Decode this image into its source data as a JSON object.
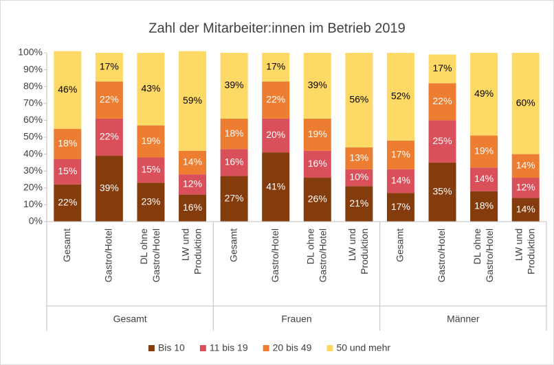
{
  "chart_data": {
    "type": "stacked_bar",
    "title": "Zahl der Mitarbeiter:innen im Betrieb 2019",
    "categories": [
      [
        "Gesamt"
      ],
      [
        "Gastro/Hotel"
      ],
      [
        "DL ohne",
        "Gastro/Hotel"
      ],
      [
        "LW und",
        "Produktion"
      ],
      [
        "Gesamt"
      ],
      [
        "Gastro/Hotel"
      ],
      [
        "DL ohne",
        "Gastro/Hotel"
      ],
      [
        "LW und",
        "Produktion"
      ],
      [
        "Gesamt"
      ],
      [
        "Gastro/Hotel"
      ],
      [
        "DL ohne",
        "Gastro/Hotel"
      ],
      [
        "LW und",
        "Produktion"
      ]
    ],
    "groups": [
      "Gesamt",
      "Frauen",
      "Männer"
    ],
    "series": [
      {
        "name": "Bis 10",
        "color": "#843c0c",
        "label_color": "#ffffff",
        "values": [
          22,
          39,
          23,
          16,
          27,
          41,
          26,
          21,
          17,
          35,
          18,
          14
        ],
        "value_labels": [
          "22%",
          "39%",
          "23%",
          "16%",
          "27%",
          "41%",
          "26%",
          "21%",
          "17%",
          "35%",
          "18%",
          "14%"
        ]
      },
      {
        "name": "11 bis 19",
        "color": "#d9505a",
        "label_color": "#ffffff",
        "values": [
          15,
          22,
          15,
          12,
          16,
          20,
          16,
          10,
          14,
          25,
          14,
          12
        ],
        "value_labels": [
          "15%",
          "22%",
          "15%",
          "12%",
          "16%",
          "20%",
          "16%",
          "10%",
          "14%",
          "25%",
          "14%",
          "12%"
        ]
      },
      {
        "name": "20 bis 49",
        "color": "#ed7d31",
        "label_color": "#ffffff",
        "values": [
          18,
          22,
          19,
          14,
          18,
          22,
          19,
          13,
          17,
          22,
          19,
          14
        ],
        "value_labels": [
          "18%",
          "22%",
          "19%",
          "14%",
          "18%",
          "22%",
          "19%",
          "13%",
          "17%",
          "22%",
          "19%",
          "14%"
        ]
      },
      {
        "name": "50 und mehr",
        "color": "#ffd966",
        "label_color": "#000000",
        "values": [
          46,
          17,
          43,
          59,
          39,
          17,
          39,
          56,
          52,
          17,
          49,
          60
        ],
        "value_labels": [
          "46%",
          "17%",
          "43%",
          "59%",
          "39%",
          "17%",
          "39%",
          "56%",
          "52%",
          "17%",
          "49%",
          "60%"
        ]
      }
    ],
    "ylim": [
      0,
      100
    ],
    "yticks": [
      {
        "value": 0,
        "label": "0%"
      },
      {
        "value": 10,
        "label": "10%"
      },
      {
        "value": 20,
        "label": "20%"
      },
      {
        "value": 30,
        "label": "30%"
      },
      {
        "value": 40,
        "label": "40%"
      },
      {
        "value": 50,
        "label": "50%"
      },
      {
        "value": 60,
        "label": "60%"
      },
      {
        "value": 70,
        "label": "70%"
      },
      {
        "value": 80,
        "label": "80%"
      },
      {
        "value": 90,
        "label": "90%"
      },
      {
        "value": 100,
        "label": "100%"
      }
    ],
    "grid": false,
    "legend": "bottom"
  }
}
